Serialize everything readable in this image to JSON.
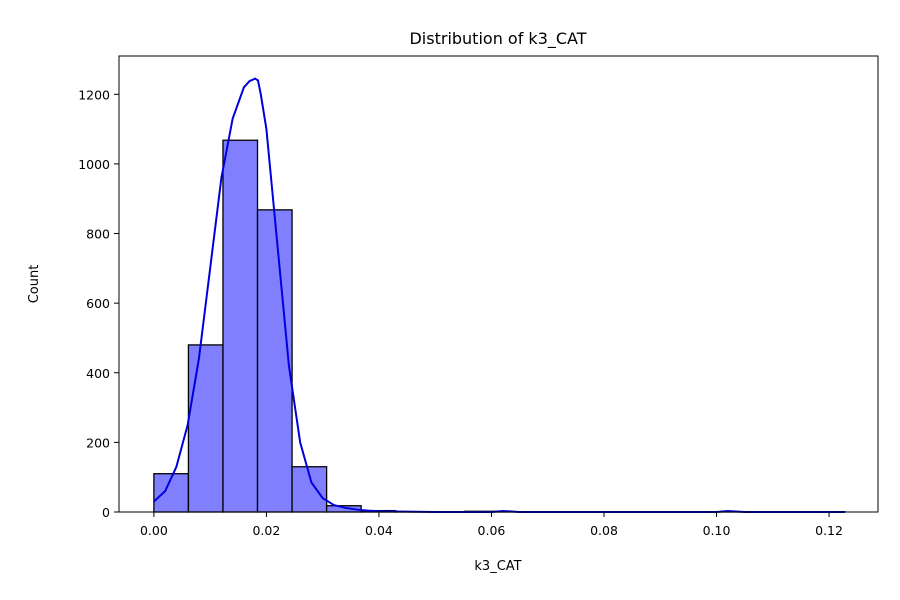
{
  "chart_data": {
    "type": "bar",
    "title": "Distribution of k3_CAT",
    "xlabel": "k3_CAT",
    "ylabel": "Count",
    "xlim": [
      -0.0062,
      0.1287
    ],
    "ylim": [
      0,
      1310
    ],
    "x_ticks": [
      0.0,
      0.02,
      0.04,
      0.06,
      0.08,
      0.1,
      0.12
    ],
    "x_tick_labels": [
      "0.00",
      "0.02",
      "0.04",
      "0.06",
      "0.08",
      "0.10",
      "0.12"
    ],
    "y_ticks": [
      0,
      200,
      400,
      600,
      800,
      1000,
      1200
    ],
    "y_tick_labels": [
      "0",
      "200",
      "400",
      "600",
      "800",
      "1000",
      "1200"
    ],
    "grid": false,
    "legend": "none",
    "bin_edges": [
      0.0,
      0.00614,
      0.01228,
      0.01842,
      0.02456,
      0.0307,
      0.03684,
      0.04298,
      0.04912,
      0.05526,
      0.0614,
      0.06754,
      0.07368,
      0.07982,
      0.08596,
      0.0921,
      0.09824,
      0.10438,
      0.11052,
      0.11666,
      0.1228
    ],
    "counts": [
      110,
      480,
      1068,
      868,
      130,
      18,
      4,
      1,
      1,
      2,
      1,
      0,
      0,
      0,
      0,
      1,
      1,
      0,
      0,
      1
    ],
    "bar_color": "#8080ff",
    "bar_edge_color": "#000000",
    "kde": {
      "x": [
        0.0,
        0.002,
        0.004,
        0.006,
        0.008,
        0.01,
        0.012,
        0.014,
        0.016,
        0.017,
        0.018,
        0.0185,
        0.019,
        0.02,
        0.022,
        0.024,
        0.026,
        0.028,
        0.03,
        0.032,
        0.034,
        0.036,
        0.038,
        0.04,
        0.045,
        0.05,
        0.06,
        0.062,
        0.065,
        0.07,
        0.09,
        0.1,
        0.102,
        0.105,
        0.11,
        0.1228
      ],
      "y": [
        30,
        60,
        130,
        250,
        440,
        700,
        960,
        1130,
        1220,
        1238,
        1245,
        1240,
        1200,
        1100,
        760,
        420,
        200,
        85,
        40,
        20,
        12,
        7,
        4,
        2,
        1,
        0,
        0,
        3,
        0,
        0,
        0,
        0,
        3,
        0,
        0,
        0
      ],
      "color": "#0000dd"
    }
  }
}
